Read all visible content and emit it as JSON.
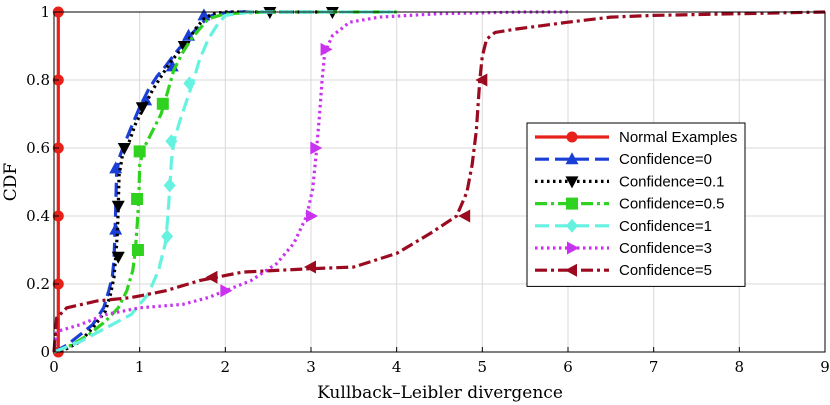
{
  "chart_data": {
    "type": "line",
    "title": "",
    "xlabel": "Kullback–Leibler divergence",
    "ylabel": "CDF",
    "xlim": [
      0,
      9
    ],
    "ylim": [
      0,
      1
    ],
    "xticks": [
      0,
      1,
      2,
      3,
      4,
      5,
      6,
      7,
      8,
      9
    ],
    "yticks": [
      0,
      0.2,
      0.4,
      0.6,
      0.8,
      1
    ],
    "ytick_labels": [
      "0",
      "0.2",
      "0.4",
      "0.6",
      "0.8",
      "1"
    ],
    "grid": true,
    "legend_position": "center-right",
    "series": [
      {
        "name": "Normal Examples",
        "color": "#e8201a",
        "marker": "circle",
        "dash": "solid",
        "x": [
          0.05,
          0.05,
          0.05,
          0.05,
          0.05,
          0.05
        ],
        "y": [
          0,
          0.2,
          0.4,
          0.6,
          0.8,
          1
        ],
        "markers_x": [
          0.05,
          0.05,
          0.05,
          0.05,
          0.05,
          0.05
        ],
        "markers_y": [
          0,
          0.2,
          0.4,
          0.6,
          0.8,
          1
        ]
      },
      {
        "name": "Confidence=0",
        "color": "#1a3fd6",
        "marker": "triangle-up",
        "dash": "dash",
        "x": [
          0.0,
          0.15,
          0.3,
          0.45,
          0.58,
          0.64,
          0.68,
          0.7,
          0.71,
          0.72,
          0.73,
          0.76,
          0.82,
          0.9,
          1.0,
          1.1,
          1.2,
          1.3,
          1.42,
          1.55,
          1.7,
          1.8,
          1.9,
          2.1,
          2.5,
          3.0
        ],
        "y": [
          0.0,
          0.02,
          0.05,
          0.08,
          0.13,
          0.18,
          0.22,
          0.27,
          0.34,
          0.42,
          0.52,
          0.57,
          0.61,
          0.66,
          0.72,
          0.77,
          0.81,
          0.84,
          0.88,
          0.92,
          0.96,
          0.985,
          0.995,
          1.0,
          1.0,
          1.0
        ],
        "markers_x": [
          0.72,
          0.72,
          1.07,
          1.38,
          1.57,
          1.75
        ],
        "markers_y": [
          0.36,
          0.54,
          0.74,
          0.84,
          0.93,
          0.99
        ]
      },
      {
        "name": "Confidence=0.1",
        "color": "#000000",
        "marker": "triangle-down",
        "dash": "dot",
        "x": [
          0.0,
          0.15,
          0.3,
          0.45,
          0.6,
          0.66,
          0.7,
          0.72,
          0.74,
          0.75,
          0.76,
          0.8,
          0.88,
          0.95,
          1.05,
          1.15,
          1.25,
          1.35,
          1.45,
          1.55,
          1.65,
          1.75,
          1.85,
          2.0,
          2.5,
          3.25
        ],
        "y": [
          0.0,
          0.01,
          0.03,
          0.07,
          0.12,
          0.17,
          0.22,
          0.28,
          0.35,
          0.43,
          0.52,
          0.58,
          0.62,
          0.67,
          0.72,
          0.77,
          0.81,
          0.85,
          0.88,
          0.91,
          0.95,
          0.98,
          0.995,
          1.0,
          1.0,
          1.0
        ],
        "markers_x": [
          0.75,
          0.75,
          0.82,
          1.03,
          1.52,
          2.52,
          3.25
        ],
        "markers_y": [
          0.28,
          0.43,
          0.6,
          0.72,
          0.9,
          1.0,
          1.0
        ]
      },
      {
        "name": "Confidence=0.5",
        "color": "#2ed21f",
        "marker": "square",
        "dash": "dashdot",
        "x": [
          0.0,
          0.2,
          0.4,
          0.6,
          0.75,
          0.85,
          0.92,
          0.95,
          0.97,
          0.99,
          1.0,
          1.05,
          1.15,
          1.25,
          1.32,
          1.4,
          1.5,
          1.6,
          1.7,
          1.8,
          2.0,
          2.5,
          3.0,
          3.5,
          4.0
        ],
        "y": [
          0.0,
          0.02,
          0.05,
          0.09,
          0.13,
          0.18,
          0.24,
          0.3,
          0.37,
          0.45,
          0.55,
          0.6,
          0.65,
          0.7,
          0.76,
          0.83,
          0.88,
          0.92,
          0.95,
          0.98,
          0.995,
          1.0,
          1.0,
          1.0,
          1.0
        ],
        "markers_x": [
          0.98,
          0.97,
          1.0,
          1.27
        ],
        "markers_y": [
          0.3,
          0.45,
          0.59,
          0.73
        ]
      },
      {
        "name": "Confidence=1",
        "color": "#66f2e0",
        "marker": "diamond",
        "dash": "dash",
        "x": [
          0.0,
          0.3,
          0.6,
          0.9,
          1.1,
          1.22,
          1.3,
          1.33,
          1.35,
          1.37,
          1.4,
          1.47,
          1.55,
          1.63,
          1.7,
          1.8,
          1.9,
          2.0,
          2.3,
          3.0,
          4.0
        ],
        "y": [
          0.0,
          0.03,
          0.07,
          0.11,
          0.17,
          0.24,
          0.32,
          0.4,
          0.48,
          0.56,
          0.62,
          0.68,
          0.74,
          0.8,
          0.86,
          0.92,
          0.96,
          0.99,
          1.0,
          1.0,
          1.0
        ],
        "markers_x": [
          1.32,
          1.35,
          1.37,
          1.58
        ],
        "markers_y": [
          0.34,
          0.49,
          0.62,
          0.79
        ]
      },
      {
        "name": "Confidence=3",
        "color": "#c933f0",
        "marker": "triangle-right",
        "dash": "dot",
        "x": [
          0.0,
          0.03,
          0.3,
          0.6,
          1.0,
          1.5,
          1.8,
          2.0,
          2.3,
          2.6,
          2.8,
          2.95,
          3.02,
          3.06,
          3.1,
          3.13,
          3.16,
          3.25,
          3.45,
          3.8,
          4.5,
          5.5,
          6.0
        ],
        "y": [
          0.0,
          0.06,
          0.08,
          0.11,
          0.13,
          0.14,
          0.16,
          0.18,
          0.21,
          0.26,
          0.32,
          0.4,
          0.48,
          0.58,
          0.7,
          0.8,
          0.88,
          0.93,
          0.97,
          0.985,
          0.995,
          1.0,
          1.0
        ],
        "markers_x": [
          2.0,
          3.0,
          3.05,
          3.17
        ],
        "markers_y": [
          0.18,
          0.4,
          0.6,
          0.89
        ]
      },
      {
        "name": "Confidence=5",
        "color": "#9b0a1f",
        "marker": "triangle-left",
        "dash": "dashdot",
        "x": [
          0.0,
          0.03,
          0.15,
          0.5,
          0.9,
          1.3,
          1.7,
          1.9,
          2.2,
          2.6,
          3.0,
          3.5,
          4.0,
          4.4,
          4.7,
          4.82,
          4.88,
          4.93,
          4.97,
          5.0,
          5.05,
          5.15,
          5.4,
          6.0,
          6.5,
          7.0,
          8.0,
          9.0
        ],
        "y": [
          0.0,
          0.1,
          0.13,
          0.15,
          0.16,
          0.18,
          0.21,
          0.22,
          0.235,
          0.24,
          0.245,
          0.25,
          0.29,
          0.35,
          0.4,
          0.47,
          0.55,
          0.65,
          0.8,
          0.87,
          0.92,
          0.94,
          0.95,
          0.97,
          0.985,
          0.99,
          0.995,
          1.0
        ],
        "markers_x": [
          1.85,
          3.0,
          4.8,
          5.0
        ],
        "markers_y": [
          0.22,
          0.25,
          0.4,
          0.8
        ]
      }
    ]
  }
}
